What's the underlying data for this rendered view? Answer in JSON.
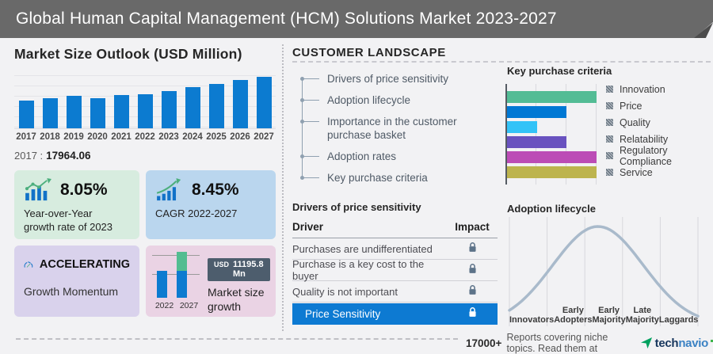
{
  "header": {
    "title": "Global Human Capital Management (HCM) Solutions Market 2023-2027"
  },
  "market_size": {
    "title": "Market Size Outlook (USD Million)",
    "base_year_label": "2017 :",
    "base_year_value": "17964.06"
  },
  "stat_cards": {
    "yoy": {
      "value": "8.05%",
      "label_line1": "Year-over-Year",
      "label_line2": "growth rate of 2023"
    },
    "cagr": {
      "value": "8.45%",
      "label": "CAGR 2022-2027"
    },
    "momentum": {
      "value": "ACCELERATING",
      "label": "Growth Momentum"
    },
    "market_growth": {
      "badge_currency": "USD",
      "badge_value": "11195.8 Mn",
      "label_line1": "Market size",
      "label_line2": "growth",
      "years": [
        "2022",
        "2027"
      ]
    }
  },
  "customer_landscape": {
    "title": "CUSTOMER LANDSCAPE",
    "items": [
      "Drivers of price sensitivity",
      "Adoption lifecycle",
      "Importance in the customer purchase basket",
      "Adoption rates",
      "Key purchase criteria"
    ]
  },
  "price_sensitivity": {
    "title": "Drivers of price sensitivity",
    "col_driver": "Driver",
    "col_impact": "Impact",
    "rows": [
      "Purchases are undifferentiated",
      "Purchase is a key cost to the buyer",
      "Quality is not important"
    ],
    "highlight_row": "Price Sensitivity"
  },
  "footer": {
    "count": "17000+",
    "text": "Reports covering niche topics. Read them at",
    "brand_dark": "tech",
    "brand_light": "navio"
  },
  "colors": {
    "bar_blue": "#0c7bd0",
    "highlight_blue": "#0d7ad2",
    "lock_gray": "#5d7389",
    "lock_white": "#ffffff",
    "badge_bg": "#4d5d6d",
    "curve": "#a9bacb"
  },
  "chart_data": [
    {
      "type": "bar",
      "title": "Market Size Outlook (USD Million)",
      "categories": [
        "2017",
        "2018",
        "2019",
        "2020",
        "2021",
        "2022",
        "2023",
        "2024",
        "2025",
        "2026",
        "2027"
      ],
      "values": [
        17964.06,
        19540,
        21120,
        19740,
        21520,
        22382.4,
        24184.2,
        26850,
        28820,
        31190,
        33578.2
      ],
      "ylabel": "USD Million",
      "ylim": [
        0,
        34500
      ],
      "grid": true,
      "bar_color": "#0c7bd0",
      "annotation": "2017 : 17964.06"
    },
    {
      "type": "bar",
      "orientation": "horizontal",
      "title": "Key purchase criteria",
      "categories": [
        "Innovation",
        "Price",
        "Quality",
        "Relatability",
        "Regulatory Compliance",
        "Service"
      ],
      "values": [
        3,
        2,
        1,
        2,
        3,
        3
      ],
      "xlim": [
        0,
        3
      ],
      "grid": true,
      "legend_position": "right",
      "colors": [
        "#53bc95",
        "#0078d4",
        "#33c3f7",
        "#6952bf",
        "#bc4cb6",
        "#bdb44e"
      ]
    },
    {
      "type": "line",
      "title": "Adoption lifecycle",
      "shape": "bell-curve",
      "stages": [
        "Innovators",
        "Early Adopters",
        "Early Majority",
        "Late Majority",
        "Laggards"
      ],
      "peak_stage": "Early Majority",
      "peak_position": 0.47,
      "sigma": 0.24,
      "color": "#a9bacb",
      "grid": true
    }
  ]
}
